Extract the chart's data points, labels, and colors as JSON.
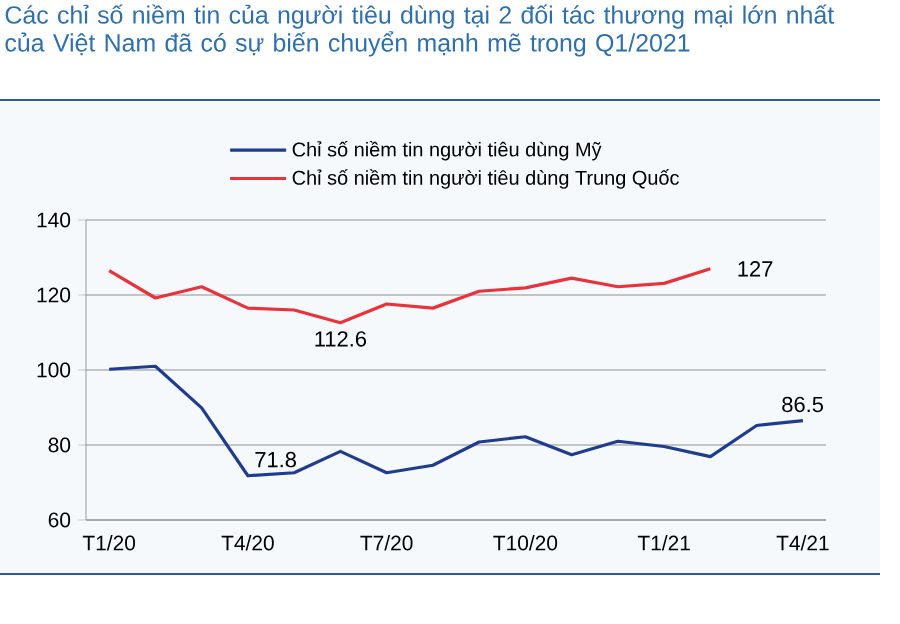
{
  "chart_data": {
    "type": "line",
    "title": "Các chỉ số niềm tin của người tiêu dùng tại 2 đối tác thương mại lớn nhất của Việt Nam đã có sự biến chuyển mạnh mẽ trong Q1/2021",
    "categories": [
      "T1/20",
      null,
      null,
      "T4/20",
      null,
      null,
      "T7/20",
      null,
      null,
      "T10/20",
      null,
      null,
      "T1/21",
      null,
      null,
      "T4/21"
    ],
    "series": [
      {
        "name": "Chỉ số niềm tin người tiêu dùng Mỹ",
        "color": "#1f3d8c",
        "values": [
          100.2,
          101,
          89.9,
          71.8,
          72.6,
          78.3,
          72.6,
          74.6,
          80.8,
          82.2,
          77.4,
          81,
          79.6,
          76.9,
          85.2,
          86.5
        ],
        "value_labels": [
          null,
          null,
          null,
          "71.8",
          null,
          null,
          null,
          null,
          null,
          null,
          null,
          null,
          null,
          null,
          null,
          "86.5"
        ]
      },
      {
        "name": "Chỉ số niềm tin người tiêu dùng Trung Quốc",
        "color": "#e8323c",
        "values": [
          126.5,
          119.2,
          122.2,
          116.5,
          116,
          112.6,
          117.6,
          116.5,
          121,
          121.9,
          124.5,
          122.2,
          123.1,
          127,
          null,
          null
        ],
        "value_labels": [
          null,
          null,
          null,
          null,
          null,
          "112.6",
          null,
          null,
          null,
          null,
          null,
          null,
          null,
          "127",
          null,
          null
        ]
      }
    ],
    "ylim": [
      60,
      140
    ],
    "yticks": [
      60,
      80,
      100,
      120,
      140
    ],
    "grid": "y",
    "legend": "top"
  }
}
